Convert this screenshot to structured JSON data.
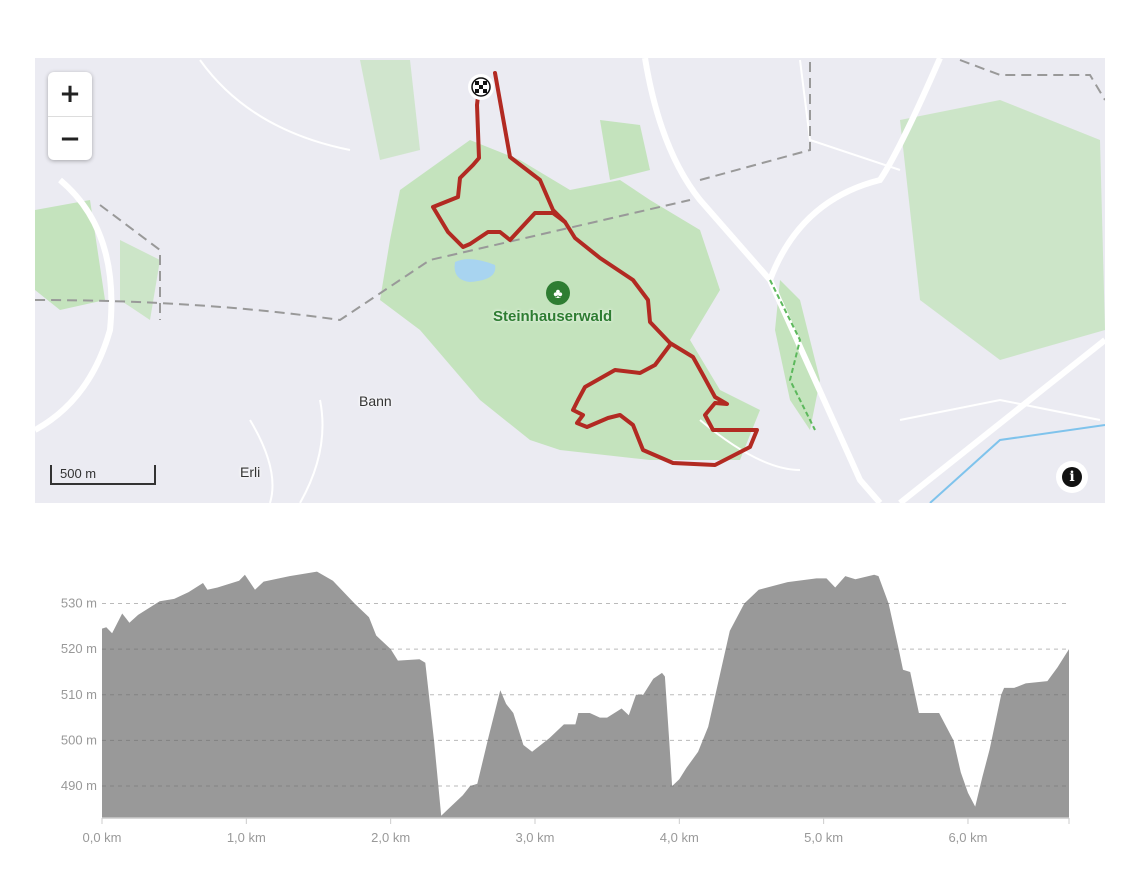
{
  "map": {
    "zoom_in_label": "+",
    "zoom_out_label": "−",
    "scale_label": "500 m",
    "info_icon": "info-icon",
    "places": {
      "forest": "Steinhauserwald",
      "bann": "Bann",
      "erli": "Erli"
    },
    "route_color": "#b22a22",
    "forest_color": "#c4e3bd",
    "start_marker_icon": "checkered-flag-icon"
  },
  "chart_data": {
    "type": "area",
    "xlabel": "",
    "ylabel": "",
    "xlim": [
      0,
      6.7
    ],
    "ylim": [
      483,
      538
    ],
    "grid": true,
    "fill_color": "#999999",
    "x_ticks": [
      "0,0 km",
      "1,0 km",
      "2,0 km",
      "3,0 km",
      "4,0 km",
      "5,0 km",
      "6,0 km"
    ],
    "x_tick_values": [
      0,
      1,
      2,
      3,
      4,
      5,
      6
    ],
    "y_ticks": [
      "490 m",
      "500 m",
      "510 m",
      "520 m",
      "530 m"
    ],
    "y_tick_values": [
      490,
      500,
      510,
      520,
      530
    ],
    "points": [
      [
        0,
        524.5
      ],
      [
        0.03,
        524.8
      ],
      [
        0.07,
        523.5
      ],
      [
        0.14,
        527.8
      ],
      [
        0.19,
        525.8
      ],
      [
        0.25,
        527.5
      ],
      [
        0.4,
        530.5
      ],
      [
        0.5,
        531
      ],
      [
        0.6,
        532.5
      ],
      [
        0.7,
        534.5
      ],
      [
        0.73,
        533
      ],
      [
        0.8,
        533.5
      ],
      [
        0.95,
        535
      ],
      [
        0.99,
        536.3
      ],
      [
        1.06,
        533
      ],
      [
        1.12,
        534.8
      ],
      [
        1.3,
        536
      ],
      [
        1.4,
        536.5
      ],
      [
        1.49,
        537
      ],
      [
        1.6,
        535
      ],
      [
        1.75,
        530
      ],
      [
        1.85,
        527
      ],
      [
        1.9,
        523
      ],
      [
        2.0,
        520
      ],
      [
        2.05,
        517.5
      ],
      [
        2.2,
        517.8
      ],
      [
        2.24,
        517
      ],
      [
        2.3,
        500
      ],
      [
        2.35,
        483.5
      ],
      [
        2.4,
        485
      ],
      [
        2.5,
        488
      ],
      [
        2.55,
        490
      ],
      [
        2.6,
        490.5
      ],
      [
        2.68,
        501
      ],
      [
        2.76,
        511
      ],
      [
        2.8,
        508
      ],
      [
        2.85,
        506
      ],
      [
        2.92,
        499
      ],
      [
        2.98,
        497.5
      ],
      [
        3.1,
        500.5
      ],
      [
        3.2,
        503.5
      ],
      [
        3.28,
        503.5
      ],
      [
        3.3,
        506
      ],
      [
        3.38,
        506
      ],
      [
        3.45,
        505
      ],
      [
        3.5,
        505
      ],
      [
        3.6,
        507
      ],
      [
        3.65,
        505.5
      ],
      [
        3.7,
        510
      ],
      [
        3.75,
        510
      ],
      [
        3.82,
        513.5
      ],
      [
        3.88,
        514.8
      ],
      [
        3.9,
        514
      ],
      [
        3.93,
        500
      ],
      [
        3.95,
        490
      ],
      [
        4.0,
        491.5
      ],
      [
        4.05,
        494
      ],
      [
        4.13,
        497.5
      ],
      [
        4.2,
        503
      ],
      [
        4.3,
        517
      ],
      [
        4.35,
        524
      ],
      [
        4.45,
        530
      ],
      [
        4.55,
        533
      ],
      [
        4.75,
        534.7
      ],
      [
        4.95,
        535.5
      ],
      [
        5.02,
        535.5
      ],
      [
        5.08,
        533.5
      ],
      [
        5.15,
        536
      ],
      [
        5.22,
        535.3
      ],
      [
        5.35,
        536.3
      ],
      [
        5.38,
        536
      ],
      [
        5.45,
        530
      ],
      [
        5.52,
        520
      ],
      [
        5.55,
        515.5
      ],
      [
        5.6,
        515
      ],
      [
        5.66,
        506
      ],
      [
        5.8,
        506
      ],
      [
        5.9,
        500
      ],
      [
        5.95,
        493
      ],
      [
        6.0,
        488.5
      ],
      [
        6.05,
        485.5
      ],
      [
        6.1,
        492
      ],
      [
        6.15,
        498
      ],
      [
        6.23,
        510
      ],
      [
        6.25,
        511.5
      ],
      [
        6.32,
        511.5
      ],
      [
        6.4,
        512.5
      ],
      [
        6.55,
        513
      ],
      [
        6.62,
        516
      ],
      [
        6.7,
        520
      ]
    ]
  }
}
